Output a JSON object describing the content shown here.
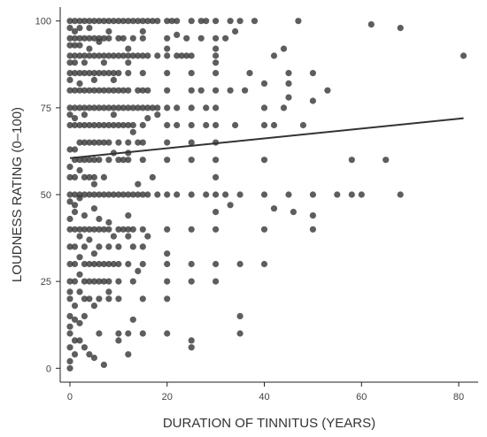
{
  "chart_data": {
    "type": "scatter",
    "title": "",
    "xlabel": "DURATION OF TINNITUS (YEARS)",
    "ylabel": "LOUDNESS RATING (0–100)",
    "xlim": [
      -2,
      84
    ],
    "ylim": [
      -4,
      104
    ],
    "xticks": [
      0,
      20,
      40,
      60,
      80
    ],
    "yticks": [
      0,
      25,
      50,
      75,
      100
    ],
    "grid": false,
    "legend": "none",
    "point_color": "#3a3a3a",
    "line_color": "#333333",
    "trend_line": {
      "x": [
        0,
        81
      ],
      "y": [
        60.5,
        72
      ]
    },
    "points": [
      [
        0,
        0
      ],
      [
        0,
        2
      ],
      [
        1,
        4
      ],
      [
        0,
        6
      ],
      [
        1,
        8
      ],
      [
        0,
        10
      ],
      [
        2,
        8
      ],
      [
        3,
        6
      ],
      [
        4,
        4
      ],
      [
        7,
        1
      ],
      [
        5,
        3
      ],
      [
        12,
        4
      ],
      [
        0,
        12
      ],
      [
        1,
        14
      ],
      [
        2,
        13
      ],
      [
        0,
        15
      ],
      [
        3,
        15
      ],
      [
        6,
        10
      ],
      [
        10,
        8
      ],
      [
        10,
        10
      ],
      [
        12,
        10
      ],
      [
        15,
        10
      ],
      [
        20,
        10
      ],
      [
        25,
        8
      ],
      [
        25,
        6
      ],
      [
        35,
        10
      ],
      [
        35,
        15
      ],
      [
        13,
        14
      ],
      [
        0,
        20
      ],
      [
        1,
        18
      ],
      [
        2,
        22
      ],
      [
        3,
        20
      ],
      [
        0,
        22
      ],
      [
        4,
        20
      ],
      [
        5,
        18
      ],
      [
        6,
        20
      ],
      [
        8,
        20
      ],
      [
        10,
        20
      ],
      [
        15,
        20
      ],
      [
        20,
        20
      ],
      [
        0,
        25
      ],
      [
        1,
        25
      ],
      [
        2,
        27
      ],
      [
        3,
        25
      ],
      [
        4,
        25
      ],
      [
        5,
        25
      ],
      [
        6,
        25
      ],
      [
        7,
        25
      ],
      [
        8,
        25
      ],
      [
        10,
        25
      ],
      [
        13,
        25
      ],
      [
        14,
        28
      ],
      [
        20,
        25
      ],
      [
        25,
        25
      ],
      [
        30,
        25
      ],
      [
        8,
        22
      ],
      [
        0,
        30
      ],
      [
        1,
        30
      ],
      [
        2,
        32
      ],
      [
        3,
        30
      ],
      [
        4,
        30
      ],
      [
        5,
        30
      ],
      [
        6,
        30
      ],
      [
        7,
        30
      ],
      [
        8,
        30
      ],
      [
        9,
        30
      ],
      [
        10,
        30
      ],
      [
        12,
        30
      ],
      [
        15,
        30
      ],
      [
        20,
        30
      ],
      [
        20,
        33
      ],
      [
        25,
        30
      ],
      [
        30,
        30
      ],
      [
        35,
        30
      ],
      [
        40,
        30
      ],
      [
        5,
        33
      ],
      [
        10,
        35
      ],
      [
        13,
        35
      ],
      [
        15,
        35
      ],
      [
        0,
        35
      ],
      [
        1,
        35
      ],
      [
        2,
        38
      ],
      [
        3,
        35
      ],
      [
        4,
        37
      ],
      [
        6,
        35
      ],
      [
        8,
        35
      ],
      [
        9,
        38
      ],
      [
        0,
        40
      ],
      [
        1,
        40
      ],
      [
        2,
        40
      ],
      [
        3,
        40
      ],
      [
        4,
        40
      ],
      [
        5,
        40
      ],
      [
        6,
        40
      ],
      [
        7,
        40
      ],
      [
        8,
        40
      ],
      [
        10,
        40
      ],
      [
        11,
        40
      ],
      [
        12,
        40
      ],
      [
        13,
        40
      ],
      [
        15,
        40
      ],
      [
        20,
        40
      ],
      [
        25,
        40
      ],
      [
        30,
        40
      ],
      [
        40,
        40
      ],
      [
        50,
        40
      ],
      [
        8,
        42
      ],
      [
        12,
        38
      ],
      [
        16,
        38
      ],
      [
        0,
        43
      ],
      [
        1,
        45
      ],
      [
        3,
        44
      ],
      [
        5,
        46
      ],
      [
        6,
        43
      ],
      [
        12,
        44
      ],
      [
        30,
        45
      ],
      [
        42,
        46
      ],
      [
        46,
        45
      ],
      [
        50,
        44
      ],
      [
        33,
        47
      ],
      [
        0,
        48
      ],
      [
        1,
        47
      ],
      [
        2,
        49
      ],
      [
        0,
        50
      ],
      [
        1,
        50
      ],
      [
        2,
        50
      ],
      [
        3,
        50
      ],
      [
        4,
        50
      ],
      [
        5,
        50
      ],
      [
        6,
        50
      ],
      [
        7,
        50
      ],
      [
        8,
        50
      ],
      [
        9,
        50
      ],
      [
        10,
        50
      ],
      [
        11,
        50
      ],
      [
        12,
        50
      ],
      [
        13,
        50
      ],
      [
        14,
        50
      ],
      [
        15,
        50
      ],
      [
        16,
        50
      ],
      [
        18,
        50
      ],
      [
        20,
        50
      ],
      [
        22,
        50
      ],
      [
        25,
        50
      ],
      [
        28,
        50
      ],
      [
        30,
        50
      ],
      [
        32,
        50
      ],
      [
        35,
        50
      ],
      [
        40,
        50
      ],
      [
        45,
        50
      ],
      [
        50,
        50
      ],
      [
        55,
        50
      ],
      [
        58,
        50
      ],
      [
        60,
        50
      ],
      [
        68,
        50
      ],
      [
        14,
        53
      ],
      [
        17,
        55
      ],
      [
        30,
        55
      ],
      [
        5,
        53
      ],
      [
        0,
        55
      ],
      [
        1,
        55
      ],
      [
        2,
        57
      ],
      [
        3,
        55
      ],
      [
        4,
        55
      ],
      [
        5,
        55
      ],
      [
        7,
        55
      ],
      [
        0,
        58
      ],
      [
        1,
        60
      ],
      [
        2,
        60
      ],
      [
        3,
        60
      ],
      [
        4,
        60
      ],
      [
        5,
        60
      ],
      [
        6,
        60
      ],
      [
        8,
        60
      ],
      [
        10,
        60
      ],
      [
        11,
        60
      ],
      [
        12,
        60
      ],
      [
        15,
        60
      ],
      [
        20,
        60
      ],
      [
        25,
        60
      ],
      [
        30,
        60
      ],
      [
        40,
        60
      ],
      [
        58,
        60
      ],
      [
        65,
        60
      ],
      [
        9,
        62
      ],
      [
        12,
        62
      ],
      [
        0,
        63
      ],
      [
        1,
        63
      ],
      [
        2,
        65
      ],
      [
        3,
        65
      ],
      [
        4,
        65
      ],
      [
        5,
        65
      ],
      [
        6,
        65
      ],
      [
        7,
        65
      ],
      [
        8,
        65
      ],
      [
        10,
        65
      ],
      [
        12,
        65
      ],
      [
        14,
        65
      ],
      [
        15,
        65
      ],
      [
        20,
        65
      ],
      [
        25,
        65
      ],
      [
        30,
        65
      ],
      [
        13,
        68
      ],
      [
        0,
        70
      ],
      [
        1,
        70
      ],
      [
        2,
        70
      ],
      [
        3,
        70
      ],
      [
        4,
        70
      ],
      [
        5,
        70
      ],
      [
        6,
        70
      ],
      [
        7,
        70
      ],
      [
        8,
        70
      ],
      [
        9,
        70
      ],
      [
        10,
        70
      ],
      [
        11,
        70
      ],
      [
        12,
        70
      ],
      [
        13,
        70
      ],
      [
        15,
        70
      ],
      [
        20,
        70
      ],
      [
        22,
        70
      ],
      [
        25,
        70
      ],
      [
        28,
        70
      ],
      [
        30,
        70
      ],
      [
        34,
        70
      ],
      [
        40,
        70
      ],
      [
        42,
        70
      ],
      [
        48,
        70
      ],
      [
        0,
        73
      ],
      [
        1,
        72
      ],
      [
        3,
        73
      ],
      [
        9,
        73
      ],
      [
        16,
        72
      ],
      [
        18,
        73
      ],
      [
        0,
        75
      ],
      [
        1,
        75
      ],
      [
        2,
        75
      ],
      [
        3,
        75
      ],
      [
        4,
        75
      ],
      [
        5,
        75
      ],
      [
        6,
        75
      ],
      [
        7,
        75
      ],
      [
        8,
        75
      ],
      [
        9,
        75
      ],
      [
        10,
        75
      ],
      [
        11,
        75
      ],
      [
        12,
        75
      ],
      [
        13,
        75
      ],
      [
        14,
        75
      ],
      [
        15,
        75
      ],
      [
        16,
        75
      ],
      [
        17,
        75
      ],
      [
        18,
        75
      ],
      [
        20,
        75
      ],
      [
        22,
        75
      ],
      [
        25,
        75
      ],
      [
        28,
        75
      ],
      [
        30,
        75
      ],
      [
        40,
        75
      ],
      [
        44,
        75
      ],
      [
        50,
        77
      ],
      [
        45,
        78
      ],
      [
        0,
        80
      ],
      [
        1,
        80
      ],
      [
        2,
        80
      ],
      [
        3,
        80
      ],
      [
        4,
        80
      ],
      [
        5,
        80
      ],
      [
        6,
        80
      ],
      [
        7,
        80
      ],
      [
        8,
        80
      ],
      [
        9,
        80
      ],
      [
        10,
        80
      ],
      [
        11,
        80
      ],
      [
        12,
        80
      ],
      [
        14,
        80
      ],
      [
        15,
        80
      ],
      [
        16,
        80
      ],
      [
        20,
        80
      ],
      [
        25,
        80
      ],
      [
        27,
        80
      ],
      [
        30,
        80
      ],
      [
        33,
        80
      ],
      [
        36,
        80
      ],
      [
        53,
        80
      ],
      [
        40,
        82
      ],
      [
        45,
        82
      ],
      [
        0,
        83
      ],
      [
        2,
        82
      ],
      [
        5,
        83
      ],
      [
        9,
        83
      ],
      [
        0,
        85
      ],
      [
        1,
        85
      ],
      [
        2,
        85
      ],
      [
        3,
        85
      ],
      [
        4,
        85
      ],
      [
        5,
        85
      ],
      [
        6,
        85
      ],
      [
        7,
        85
      ],
      [
        8,
        85
      ],
      [
        9,
        85
      ],
      [
        10,
        85
      ],
      [
        12,
        85
      ],
      [
        15,
        85
      ],
      [
        20,
        85
      ],
      [
        25,
        85
      ],
      [
        30,
        85
      ],
      [
        37,
        85
      ],
      [
        45,
        85
      ],
      [
        50,
        85
      ],
      [
        0,
        88
      ],
      [
        1,
        88
      ],
      [
        3,
        88
      ],
      [
        7,
        88
      ],
      [
        12,
        88
      ],
      [
        30,
        88
      ],
      [
        0,
        90
      ],
      [
        1,
        90
      ],
      [
        2,
        90
      ],
      [
        3,
        90
      ],
      [
        4,
        90
      ],
      [
        5,
        90
      ],
      [
        6,
        90
      ],
      [
        7,
        90
      ],
      [
        8,
        90
      ],
      [
        9,
        90
      ],
      [
        10,
        90
      ],
      [
        11,
        90
      ],
      [
        12,
        90
      ],
      [
        13,
        90
      ],
      [
        14,
        90
      ],
      [
        15,
        90
      ],
      [
        16,
        90
      ],
      [
        18,
        90
      ],
      [
        20,
        90
      ],
      [
        22,
        90
      ],
      [
        23,
        90
      ],
      [
        24,
        90
      ],
      [
        25,
        90
      ],
      [
        30,
        90
      ],
      [
        42,
        90
      ],
      [
        81,
        90
      ],
      [
        0,
        93
      ],
      [
        1,
        93
      ],
      [
        2,
        93
      ],
      [
        4,
        92
      ],
      [
        6,
        94
      ],
      [
        12,
        92
      ],
      [
        20,
        92
      ],
      [
        30,
        92
      ],
      [
        44,
        92
      ],
      [
        0,
        95
      ],
      [
        1,
        95
      ],
      [
        2,
        95
      ],
      [
        3,
        95
      ],
      [
        4,
        95
      ],
      [
        5,
        95
      ],
      [
        6,
        95
      ],
      [
        7,
        95
      ],
      [
        8,
        95
      ],
      [
        10,
        95
      ],
      [
        11,
        95
      ],
      [
        13,
        95
      ],
      [
        15,
        95
      ],
      [
        20,
        95
      ],
      [
        24,
        95
      ],
      [
        27,
        95
      ],
      [
        30,
        95
      ],
      [
        32,
        95
      ],
      [
        15,
        97
      ],
      [
        22,
        96
      ],
      [
        34,
        97
      ],
      [
        0,
        98
      ],
      [
        1,
        97
      ],
      [
        2,
        98
      ],
      [
        4,
        98
      ],
      [
        8,
        97
      ],
      [
        0,
        100
      ],
      [
        1,
        100
      ],
      [
        2,
        100
      ],
      [
        3,
        100
      ],
      [
        4,
        100
      ],
      [
        5,
        100
      ],
      [
        6,
        100
      ],
      [
        7,
        100
      ],
      [
        8,
        100
      ],
      [
        9,
        100
      ],
      [
        10,
        100
      ],
      [
        11,
        100
      ],
      [
        12,
        100
      ],
      [
        13,
        100
      ],
      [
        14,
        100
      ],
      [
        15,
        100
      ],
      [
        16,
        100
      ],
      [
        17,
        100
      ],
      [
        18,
        100
      ],
      [
        20,
        100
      ],
      [
        21,
        100
      ],
      [
        22,
        100
      ],
      [
        25,
        100
      ],
      [
        27,
        100
      ],
      [
        28,
        100
      ],
      [
        30,
        100
      ],
      [
        33,
        100
      ],
      [
        35,
        100
      ],
      [
        38,
        100
      ],
      [
        47,
        100
      ],
      [
        62,
        99
      ],
      [
        68,
        98
      ]
    ]
  }
}
